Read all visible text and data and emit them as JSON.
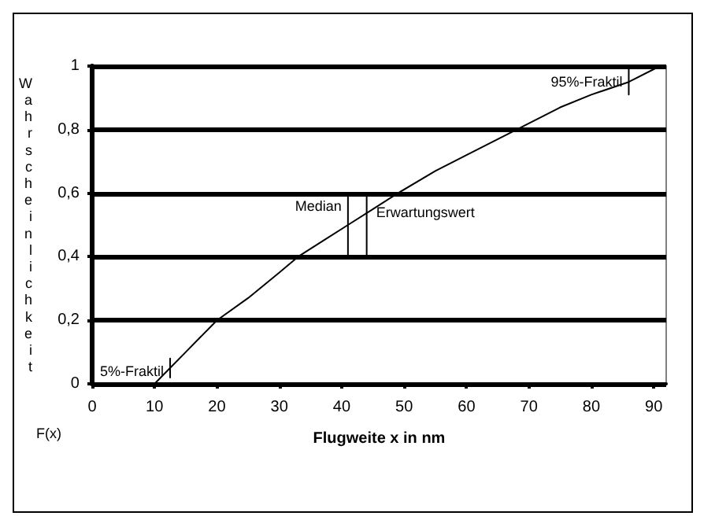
{
  "chart_data": {
    "type": "line",
    "xlabel": "Flugweite x in nm",
    "ylabel": "Wahrscheinlichkeit",
    "x": [
      10,
      12.5,
      15,
      20,
      25,
      30,
      33,
      37,
      41,
      45,
      49,
      55,
      60,
      68,
      75,
      80,
      86,
      91
    ],
    "series": [
      {
        "color": "#000000",
        "values": [
          0,
          0.05,
          0.1,
          0.2,
          0.27,
          0.35,
          0.4,
          0.45,
          0.5,
          0.55,
          0.6,
          0.67,
          0.72,
          0.8,
          0.87,
          0.91,
          0.95,
          1.0
        ]
      },
      {
        "name": "5%-Fraktil",
        "color": "#000000",
        "x": [
          12.5,
          12.5
        ],
        "values": [
          0.02,
          0.08
        ]
      },
      {
        "name": "Median",
        "color": "#000000",
        "x": [
          41,
          41
        ],
        "values": [
          0.4,
          0.6
        ]
      },
      {
        "name": "Erwartungswert",
        "color": "#000000",
        "x": [
          44,
          44
        ],
        "values": [
          0.4,
          0.6
        ]
      },
      {
        "name": "95%-Fraktil",
        "color": "#000000",
        "x": [
          86,
          86
        ],
        "values": [
          0.91,
          0.99
        ]
      }
    ],
    "xlim": [
      0,
      92
    ],
    "xticks": [
      0,
      10,
      20,
      30,
      40,
      50,
      60,
      70,
      80,
      90
    ],
    "ylim": [
      0,
      1
    ],
    "yticks": [
      0,
      {
        "value": 0.2,
        "label": "0,2"
      },
      {
        "value": 0.4,
        "label": "0,4"
      },
      {
        "value": 0.6,
        "label": "0,6"
      },
      {
        "value": 0.8,
        "label": "0,8"
      },
      1
    ],
    "grid": "y",
    "marker": "none",
    "line_style": "solid",
    "annotations": [
      "F(x)"
    ]
  }
}
